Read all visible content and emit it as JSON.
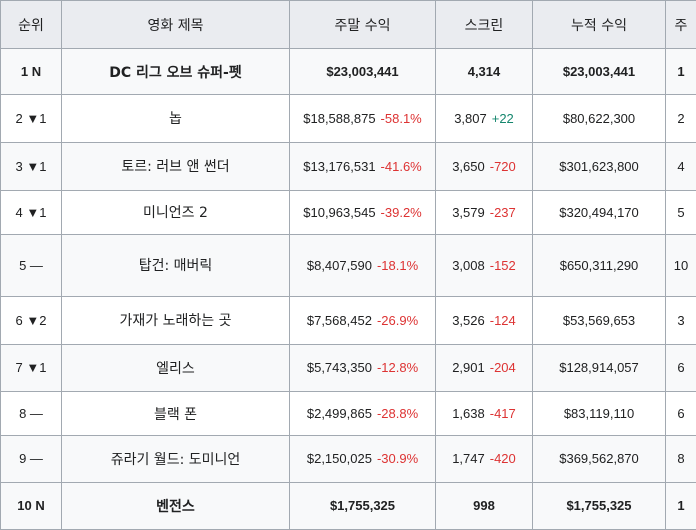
{
  "headers": [
    "순위",
    "영화 제목",
    "주말 수익",
    "스크린",
    "누적 수익",
    "주"
  ],
  "colors": {
    "header_bg": "#eaecf0",
    "border": "#a2a9b1",
    "negative": "#d33",
    "positive": "#14866d"
  },
  "rows": [
    {
      "rank": "1 N",
      "title": "DC 리그 오브 슈퍼-펫",
      "weekend": "$23,003,441",
      "weekend_change": "",
      "screens": "4,314",
      "screens_change": "",
      "gross": "$23,003,441",
      "weeks": "1"
    },
    {
      "rank": "2 ▼1",
      "title": "놉",
      "weekend": "$18,588,875",
      "weekend_change": "-58.1%",
      "screens": "3,807",
      "screens_change": "+22",
      "gross": "$80,622,300",
      "weeks": "2"
    },
    {
      "rank": "3 ▼1",
      "title": "토르: 러브 앤 썬더",
      "weekend": "$13,176,531",
      "weekend_change": "-41.6%",
      "screens": "3,650",
      "screens_change": "-720",
      "gross": "$301,623,800",
      "weeks": "4"
    },
    {
      "rank": "4 ▼1",
      "title": "미니언즈 2",
      "weekend": "$10,963,545",
      "weekend_change": "-39.2%",
      "screens": "3,579",
      "screens_change": "-237",
      "gross": "$320,494,170",
      "weeks": "5"
    },
    {
      "rank": "5 —",
      "title": "탑건: 매버릭",
      "weekend": "$8,407,590",
      "weekend_change": "-18.1%",
      "screens": "3,008",
      "screens_change": "-152",
      "gross": "$650,311,290",
      "weeks": "10"
    },
    {
      "rank": "6 ▼2",
      "title": "가재가 노래하는 곳",
      "weekend": "$7,568,452",
      "weekend_change": "-26.9%",
      "screens": "3,526",
      "screens_change": "-124",
      "gross": "$53,569,653",
      "weeks": "3"
    },
    {
      "rank": "7 ▼1",
      "title": "엘리스",
      "weekend": "$5,743,350",
      "weekend_change": "-12.8%",
      "screens": "2,901",
      "screens_change": "-204",
      "gross": "$128,914,057",
      "weeks": "6"
    },
    {
      "rank": "8 —",
      "title": "블랙 폰",
      "weekend": "$2,499,865",
      "weekend_change": "-28.8%",
      "screens": "1,638",
      "screens_change": "-417",
      "gross": "$83,119,110",
      "weeks": "6"
    },
    {
      "rank": "9 —",
      "title": "쥬라기 월드: 도미니언",
      "weekend": "$2,150,025",
      "weekend_change": "-30.9%",
      "screens": "1,747",
      "screens_change": "-420",
      "gross": "$369,562,870",
      "weeks": "8"
    },
    {
      "rank": "10 N",
      "title": "벤전스",
      "weekend": "$1,755,325",
      "weekend_change": "",
      "screens": "998",
      "screens_change": "",
      "gross": "$1,755,325",
      "weeks": "1"
    }
  ]
}
